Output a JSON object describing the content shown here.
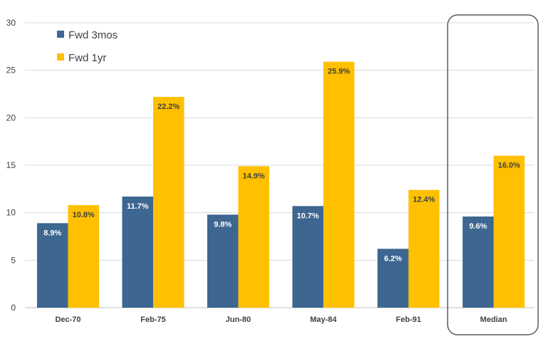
{
  "chart_data": {
    "type": "bar",
    "categories": [
      "Dec-70",
      "Feb-75",
      "Jun-80",
      "May-84",
      "Feb-91",
      "Median"
    ],
    "series": [
      {
        "name": "Fwd 3mos",
        "color": "#3d6690",
        "values": [
          8.9,
          11.7,
          9.8,
          10.7,
          6.2,
          9.6
        ],
        "labels": [
          "8.9%",
          "11.7%",
          "9.8%",
          "10.7%",
          "6.2%",
          "9.6%"
        ],
        "label_color": "#ffffff"
      },
      {
        "name": "Fwd 1yr",
        "color": "#ffc000",
        "values": [
          10.8,
          22.2,
          14.9,
          25.9,
          12.4,
          16.0
        ],
        "labels": [
          "10.8%",
          "22.2%",
          "14.9%",
          "25.9%",
          "12.4%",
          "16.0%"
        ],
        "label_color": "#404040"
      }
    ],
    "y_ticks": [
      "0",
      "5",
      "10",
      "15",
      "20",
      "25",
      "30"
    ],
    "ylim": [
      0,
      30
    ],
    "grid": true,
    "legend_position": "top-left",
    "highlight_category": "Median"
  }
}
